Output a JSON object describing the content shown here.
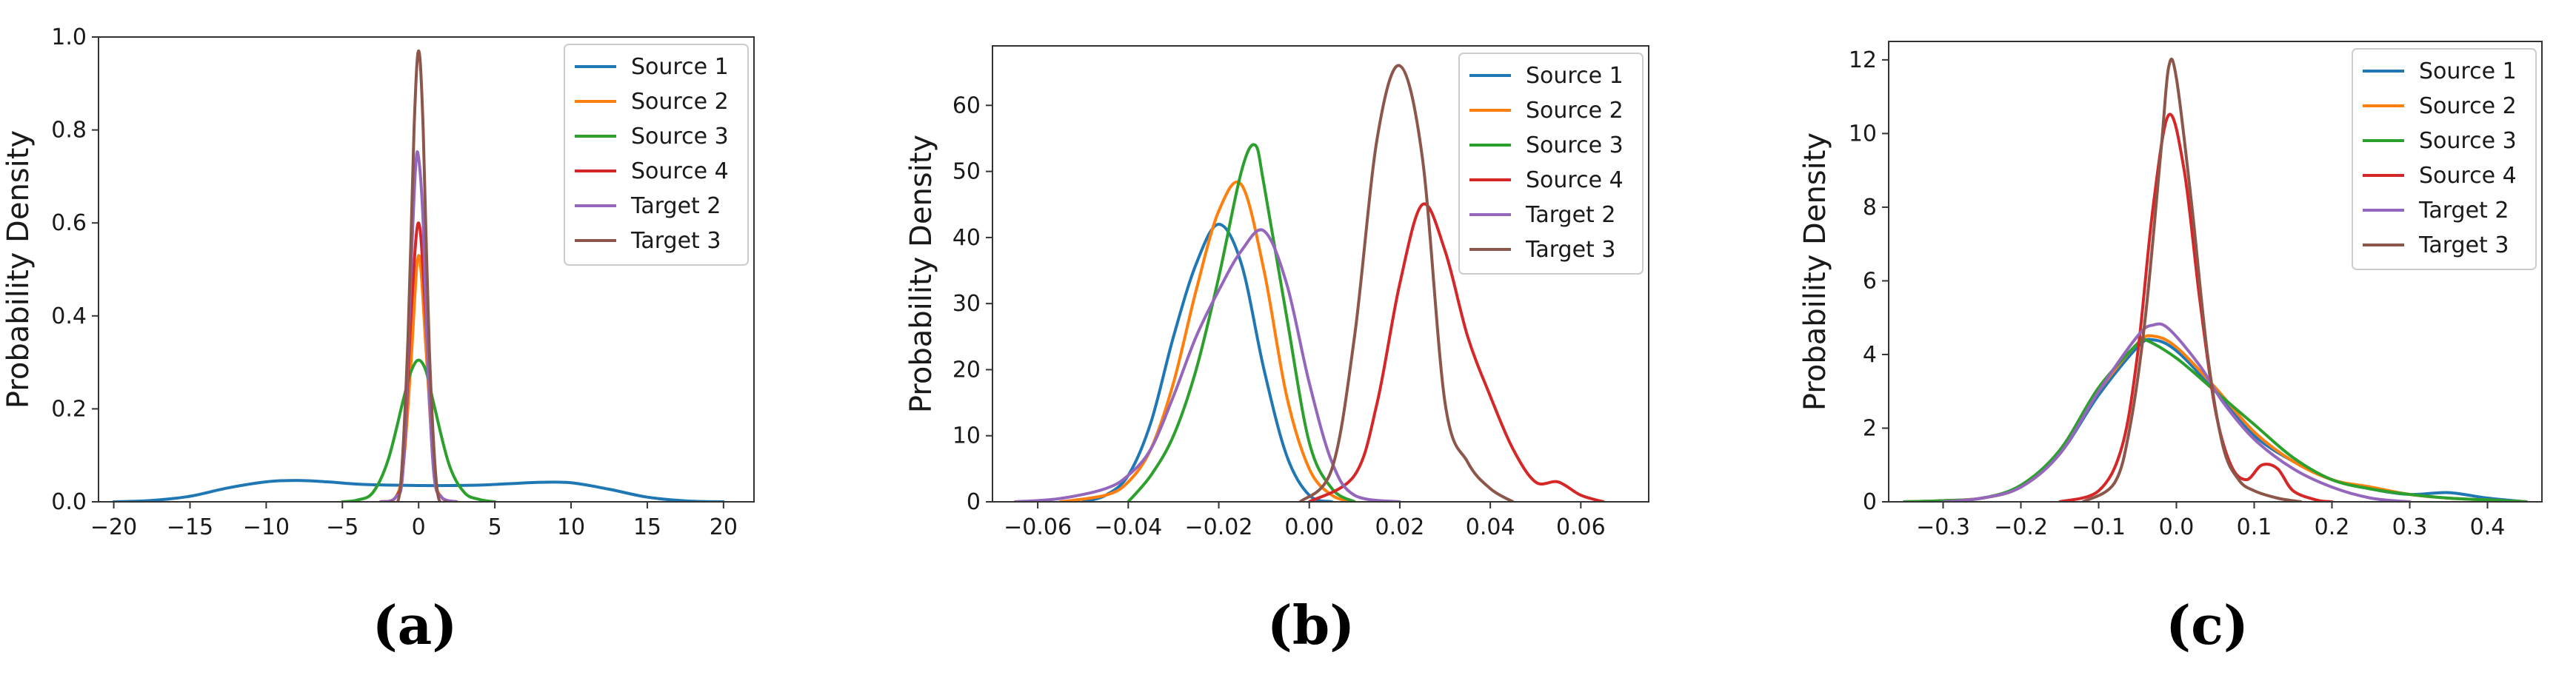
{
  "colors": {
    "Source 1": "#1f77b4",
    "Source 2": "#ff7f0e",
    "Source 3": "#2ca02c",
    "Source 4": "#d62728",
    "Target 2": "#9467bd",
    "Target 3": "#8c564b"
  },
  "chart_data": [
    {
      "type": "line",
      "panel_label": "(a)",
      "xlabel": "",
      "ylabel": "Probability Density",
      "xlim": [
        -21,
        22
      ],
      "ylim": [
        0,
        1.0
      ],
      "xticks": [
        -20,
        -15,
        -10,
        -5,
        0,
        5,
        10,
        15,
        20
      ],
      "xtick_labels": [
        "−20",
        "−15",
        "−10",
        "−5",
        "0",
        "5",
        "10",
        "15",
        "20"
      ],
      "yticks": [
        0,
        0.2,
        0.4,
        0.6,
        0.8,
        1.0
      ],
      "ytick_labels": [
        "0.0",
        "0.2",
        "0.4",
        "0.6",
        "0.8",
        "1.0"
      ],
      "grid": false,
      "legend_position": "top-right",
      "series": [
        {
          "name": "Source 1",
          "x": [
            -20,
            -17.5,
            -15,
            -12.5,
            -10,
            -8,
            -6,
            -4,
            -2,
            0,
            2,
            4,
            6,
            8,
            10,
            12.5,
            15,
            17.5,
            20
          ],
          "y": [
            0.0,
            0.003,
            0.012,
            0.03,
            0.043,
            0.046,
            0.043,
            0.038,
            0.036,
            0.035,
            0.035,
            0.036,
            0.039,
            0.042,
            0.041,
            0.027,
            0.01,
            0.002,
            0.0
          ]
        },
        {
          "name": "Source 2",
          "x": [
            -2.5,
            -1.5,
            -1.0,
            -0.5,
            0,
            0.5,
            1.0,
            1.5,
            2.5
          ],
          "y": [
            0.0,
            0.01,
            0.08,
            0.3,
            0.53,
            0.32,
            0.07,
            0.01,
            0.0
          ]
        },
        {
          "name": "Source 3",
          "x": [
            -5,
            -4,
            -3,
            -2,
            -1,
            -0.5,
            0,
            0.5,
            1,
            2,
            3,
            4,
            5
          ],
          "y": [
            0.0,
            0.004,
            0.02,
            0.09,
            0.22,
            0.28,
            0.305,
            0.28,
            0.21,
            0.08,
            0.02,
            0.005,
            0.0
          ]
        },
        {
          "name": "Source 4",
          "x": [
            -2.5,
            -1.5,
            -1.0,
            -0.5,
            0,
            0.5,
            1.0,
            1.5,
            2.5
          ],
          "y": [
            0.0,
            0.01,
            0.08,
            0.4,
            0.6,
            0.38,
            0.07,
            0.01,
            0.0
          ]
        },
        {
          "name": "Target 2",
          "x": [
            -2.5,
            -1.5,
            -1.0,
            -0.5,
            -0.2,
            0,
            0.3,
            0.6,
            1.0,
            1.5,
            2.5
          ],
          "y": [
            0.0,
            0.01,
            0.08,
            0.5,
            0.72,
            0.74,
            0.6,
            0.3,
            0.06,
            0.01,
            0.0
          ]
        },
        {
          "name": "Target 3",
          "x": [
            -1.8,
            -1.2,
            -0.7,
            -0.3,
            0,
            0.3,
            0.7,
            1.2,
            1.8
          ],
          "y": [
            0.0,
            0.03,
            0.35,
            0.8,
            0.97,
            0.8,
            0.33,
            0.03,
            0.0
          ]
        }
      ]
    },
    {
      "type": "line",
      "panel_label": "(b)",
      "xlabel": "",
      "ylabel": "Probability Density",
      "xlim": [
        -0.07,
        0.075
      ],
      "ylim": [
        0,
        69
      ],
      "xticks": [
        -0.06,
        -0.04,
        -0.02,
        0.0,
        0.02,
        0.04,
        0.06
      ],
      "xtick_labels": [
        "−0.06",
        "−0.04",
        "−0.02",
        "0.00",
        "0.02",
        "0.04",
        "0.06"
      ],
      "yticks": [
        0,
        10,
        20,
        30,
        40,
        50,
        60
      ],
      "ytick_labels": [
        "0",
        "10",
        "20",
        "30",
        "40",
        "50",
        "60"
      ],
      "grid": false,
      "legend_position": "top-right",
      "series": [
        {
          "name": "Source 1",
          "x": [
            -0.05,
            -0.045,
            -0.04,
            -0.035,
            -0.03,
            -0.025,
            -0.02,
            -0.015,
            -0.01,
            -0.005,
            0.0,
            0.005
          ],
          "y": [
            0,
            1,
            4,
            12,
            25,
            36,
            42,
            36,
            20,
            7,
            1,
            0
          ]
        },
        {
          "name": "Source 2",
          "x": [
            -0.055,
            -0.045,
            -0.04,
            -0.035,
            -0.03,
            -0.025,
            -0.02,
            -0.015,
            -0.01,
            -0.005,
            0.0,
            0.005,
            0.01
          ],
          "y": [
            0,
            1,
            3,
            8,
            18,
            32,
            44,
            48,
            35,
            16,
            5,
            1,
            0
          ]
        },
        {
          "name": "Source 3",
          "x": [
            -0.04,
            -0.035,
            -0.03,
            -0.025,
            -0.02,
            -0.015,
            -0.012,
            -0.01,
            -0.005,
            0.0,
            0.005,
            0.01
          ],
          "y": [
            0,
            4,
            10,
            20,
            34,
            50,
            54,
            48,
            28,
            9,
            2,
            0
          ]
        },
        {
          "name": "Source 4",
          "x": [
            0.0,
            0.01,
            0.015,
            0.02,
            0.025,
            0.03,
            0.035,
            0.04,
            0.045,
            0.05,
            0.055,
            0.06,
            0.065
          ],
          "y": [
            0,
            4,
            15,
            33,
            45,
            38,
            25,
            16,
            8,
            3,
            3,
            1,
            0
          ]
        },
        {
          "name": "Target 2",
          "x": [
            -0.065,
            -0.055,
            -0.045,
            -0.04,
            -0.035,
            -0.03,
            -0.025,
            -0.02,
            -0.015,
            -0.01,
            -0.005,
            0.0,
            0.005,
            0.01,
            0.02
          ],
          "y": [
            0,
            0.5,
            2,
            4,
            8,
            16,
            25,
            32,
            38,
            41,
            33,
            18,
            6,
            1,
            0
          ]
        },
        {
          "name": "Target 3",
          "x": [
            -0.002,
            0.005,
            0.01,
            0.015,
            0.02,
            0.025,
            0.03,
            0.035,
            0.04,
            0.045
          ],
          "y": [
            0,
            5,
            25,
            55,
            66,
            52,
            15,
            6,
            2,
            0
          ]
        }
      ]
    },
    {
      "type": "line",
      "panel_label": "(c)",
      "xlabel": "",
      "ylabel": "Probability Density",
      "xlim": [
        -0.37,
        0.47
      ],
      "ylim": [
        0,
        12.5
      ],
      "xticks": [
        -0.3,
        -0.2,
        -0.1,
        0.0,
        0.1,
        0.2,
        0.3,
        0.4
      ],
      "xtick_labels": [
        "−0.3",
        "−0.2",
        "−0.1",
        "0.0",
        "0.1",
        "0.2",
        "0.3",
        "0.4"
      ],
      "yticks": [
        0,
        2,
        4,
        6,
        8,
        10,
        12
      ],
      "ytick_labels": [
        "0",
        "2",
        "4",
        "6",
        "8",
        "10",
        "12"
      ],
      "grid": false,
      "legend_position": "top-right",
      "series": [
        {
          "name": "Source 1",
          "x": [
            -0.35,
            -0.3,
            -0.25,
            -0.2,
            -0.15,
            -0.1,
            -0.05,
            -0.03,
            0.0,
            0.05,
            0.1,
            0.15,
            0.2,
            0.25,
            0.3,
            0.35,
            0.4,
            0.45
          ],
          "y": [
            0,
            0.03,
            0.1,
            0.4,
            1.3,
            2.9,
            4.2,
            4.4,
            4.1,
            3.0,
            1.8,
            1.1,
            0.6,
            0.35,
            0.2,
            0.25,
            0.1,
            0
          ]
        },
        {
          "name": "Source 2",
          "x": [
            -0.35,
            -0.3,
            -0.25,
            -0.2,
            -0.15,
            -0.1,
            -0.05,
            -0.03,
            0.0,
            0.05,
            0.1,
            0.15,
            0.2,
            0.25,
            0.3,
            0.35,
            0.4,
            0.45
          ],
          "y": [
            0,
            0.03,
            0.1,
            0.4,
            1.3,
            3.0,
            4.3,
            4.5,
            4.2,
            3.1,
            1.9,
            1.1,
            0.6,
            0.4,
            0.2,
            0.1,
            0.05,
            0
          ]
        },
        {
          "name": "Source 3",
          "x": [
            -0.35,
            -0.3,
            -0.25,
            -0.2,
            -0.15,
            -0.1,
            -0.05,
            -0.04,
            0.0,
            0.05,
            0.1,
            0.15,
            0.2,
            0.25,
            0.3,
            0.35,
            0.4,
            0.45
          ],
          "y": [
            0,
            0.03,
            0.1,
            0.45,
            1.4,
            3.1,
            4.3,
            4.4,
            3.9,
            3.0,
            2.1,
            1.2,
            0.6,
            0.35,
            0.2,
            0.1,
            0.05,
            0
          ]
        },
        {
          "name": "Source 4",
          "x": [
            -0.15,
            -0.1,
            -0.07,
            -0.05,
            -0.03,
            -0.01,
            0.01,
            0.03,
            0.05,
            0.07,
            0.09,
            0.11,
            0.13,
            0.15,
            0.18,
            0.2
          ],
          "y": [
            0,
            0.3,
            1.5,
            4.0,
            8.0,
            10.5,
            9.0,
            5.5,
            2.5,
            1.0,
            0.6,
            1.0,
            0.9,
            0.3,
            0.05,
            0
          ]
        },
        {
          "name": "Target 2",
          "x": [
            -0.3,
            -0.25,
            -0.2,
            -0.15,
            -0.1,
            -0.05,
            -0.03,
            -0.01,
            0.03,
            0.06,
            0.1,
            0.15,
            0.2,
            0.25,
            0.3
          ],
          "y": [
            0,
            0.1,
            0.4,
            1.3,
            3.0,
            4.5,
            4.8,
            4.7,
            3.7,
            2.7,
            1.7,
            0.9,
            0.4,
            0.1,
            0
          ]
        },
        {
          "name": "Target 3",
          "x": [
            -0.12,
            -0.08,
            -0.06,
            -0.04,
            -0.02,
            -0.01,
            0.0,
            0.02,
            0.04,
            0.06,
            0.08,
            0.1,
            0.13,
            0.16
          ],
          "y": [
            0,
            0.5,
            2.0,
            5.0,
            9.5,
            11.8,
            11.5,
            8.0,
            4.0,
            1.5,
            0.6,
            0.3,
            0.1,
            0
          ]
        }
      ]
    }
  ]
}
